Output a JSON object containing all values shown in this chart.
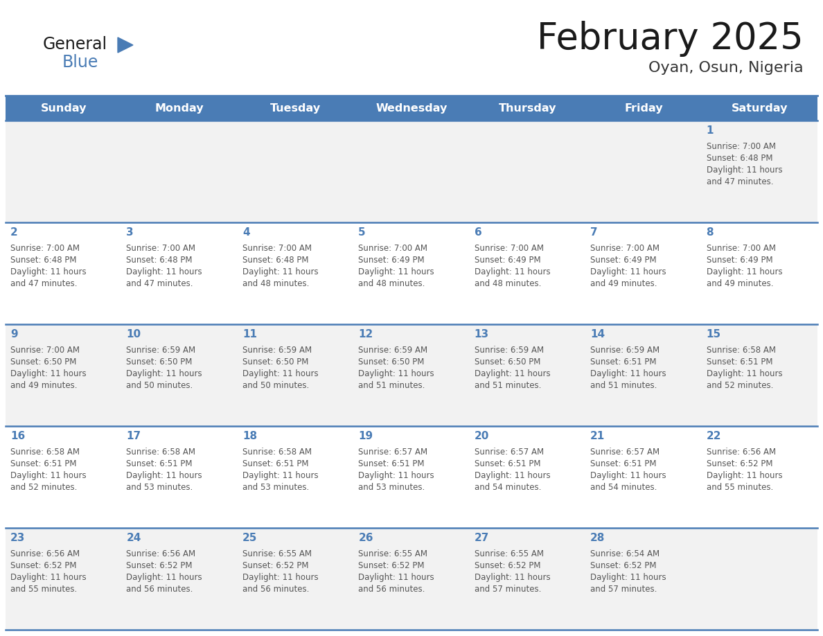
{
  "title": "February 2025",
  "subtitle": "Oyan, Osun, Nigeria",
  "header_bg_color": "#4A7CB5",
  "header_text_color": "#FFFFFF",
  "day_headers": [
    "Sunday",
    "Monday",
    "Tuesday",
    "Wednesday",
    "Thursday",
    "Friday",
    "Saturday"
  ],
  "row0_bg": "#F2F2F2",
  "row1_bg": "#FFFFFF",
  "border_color": "#4A7CB5",
  "day_num_color": "#4A7CB5",
  "text_color": "#555555",
  "title_color": "#1a1a1a",
  "subtitle_color": "#333333",
  "calendar_data": [
    [
      null,
      null,
      null,
      null,
      null,
      null,
      {
        "day": 1,
        "sunrise": "7:00 AM",
        "sunset": "6:48 PM",
        "daylight": "11 hours",
        "daylight2": "and 47 minutes."
      }
    ],
    [
      {
        "day": 2,
        "sunrise": "7:00 AM",
        "sunset": "6:48 PM",
        "daylight": "11 hours",
        "daylight2": "and 47 minutes."
      },
      {
        "day": 3,
        "sunrise": "7:00 AM",
        "sunset": "6:48 PM",
        "daylight": "11 hours",
        "daylight2": "and 47 minutes."
      },
      {
        "day": 4,
        "sunrise": "7:00 AM",
        "sunset": "6:48 PM",
        "daylight": "11 hours",
        "daylight2": "and 48 minutes."
      },
      {
        "day": 5,
        "sunrise": "7:00 AM",
        "sunset": "6:49 PM",
        "daylight": "11 hours",
        "daylight2": "and 48 minutes."
      },
      {
        "day": 6,
        "sunrise": "7:00 AM",
        "sunset": "6:49 PM",
        "daylight": "11 hours",
        "daylight2": "and 48 minutes."
      },
      {
        "day": 7,
        "sunrise": "7:00 AM",
        "sunset": "6:49 PM",
        "daylight": "11 hours",
        "daylight2": "and 49 minutes."
      },
      {
        "day": 8,
        "sunrise": "7:00 AM",
        "sunset": "6:49 PM",
        "daylight": "11 hours",
        "daylight2": "and 49 minutes."
      }
    ],
    [
      {
        "day": 9,
        "sunrise": "7:00 AM",
        "sunset": "6:50 PM",
        "daylight": "11 hours",
        "daylight2": "and 49 minutes."
      },
      {
        "day": 10,
        "sunrise": "6:59 AM",
        "sunset": "6:50 PM",
        "daylight": "11 hours",
        "daylight2": "and 50 minutes."
      },
      {
        "day": 11,
        "sunrise": "6:59 AM",
        "sunset": "6:50 PM",
        "daylight": "11 hours",
        "daylight2": "and 50 minutes."
      },
      {
        "day": 12,
        "sunrise": "6:59 AM",
        "sunset": "6:50 PM",
        "daylight": "11 hours",
        "daylight2": "and 51 minutes."
      },
      {
        "day": 13,
        "sunrise": "6:59 AM",
        "sunset": "6:50 PM",
        "daylight": "11 hours",
        "daylight2": "and 51 minutes."
      },
      {
        "day": 14,
        "sunrise": "6:59 AM",
        "sunset": "6:51 PM",
        "daylight": "11 hours",
        "daylight2": "and 51 minutes."
      },
      {
        "day": 15,
        "sunrise": "6:58 AM",
        "sunset": "6:51 PM",
        "daylight": "11 hours",
        "daylight2": "and 52 minutes."
      }
    ],
    [
      {
        "day": 16,
        "sunrise": "6:58 AM",
        "sunset": "6:51 PM",
        "daylight": "11 hours",
        "daylight2": "and 52 minutes."
      },
      {
        "day": 17,
        "sunrise": "6:58 AM",
        "sunset": "6:51 PM",
        "daylight": "11 hours",
        "daylight2": "and 53 minutes."
      },
      {
        "day": 18,
        "sunrise": "6:58 AM",
        "sunset": "6:51 PM",
        "daylight": "11 hours",
        "daylight2": "and 53 minutes."
      },
      {
        "day": 19,
        "sunrise": "6:57 AM",
        "sunset": "6:51 PM",
        "daylight": "11 hours",
        "daylight2": "and 53 minutes."
      },
      {
        "day": 20,
        "sunrise": "6:57 AM",
        "sunset": "6:51 PM",
        "daylight": "11 hours",
        "daylight2": "and 54 minutes."
      },
      {
        "day": 21,
        "sunrise": "6:57 AM",
        "sunset": "6:51 PM",
        "daylight": "11 hours",
        "daylight2": "and 54 minutes."
      },
      {
        "day": 22,
        "sunrise": "6:56 AM",
        "sunset": "6:52 PM",
        "daylight": "11 hours",
        "daylight2": "and 55 minutes."
      }
    ],
    [
      {
        "day": 23,
        "sunrise": "6:56 AM",
        "sunset": "6:52 PM",
        "daylight": "11 hours",
        "daylight2": "and 55 minutes."
      },
      {
        "day": 24,
        "sunrise": "6:56 AM",
        "sunset": "6:52 PM",
        "daylight": "11 hours",
        "daylight2": "and 56 minutes."
      },
      {
        "day": 25,
        "sunrise": "6:55 AM",
        "sunset": "6:52 PM",
        "daylight": "11 hours",
        "daylight2": "and 56 minutes."
      },
      {
        "day": 26,
        "sunrise": "6:55 AM",
        "sunset": "6:52 PM",
        "daylight": "11 hours",
        "daylight2": "and 56 minutes."
      },
      {
        "day": 27,
        "sunrise": "6:55 AM",
        "sunset": "6:52 PM",
        "daylight": "11 hours",
        "daylight2": "and 57 minutes."
      },
      {
        "day": 28,
        "sunrise": "6:54 AM",
        "sunset": "6:52 PM",
        "daylight": "11 hours",
        "daylight2": "and 57 minutes."
      },
      null
    ]
  ],
  "logo_text_general": "General",
  "logo_text_blue": "Blue",
  "logo_color_general": "#1a1a1a",
  "logo_color_blue": "#4A7CB5",
  "logo_triangle_color": "#4A7CB5",
  "figsize": [
    11.88,
    9.18
  ],
  "dpi": 100
}
